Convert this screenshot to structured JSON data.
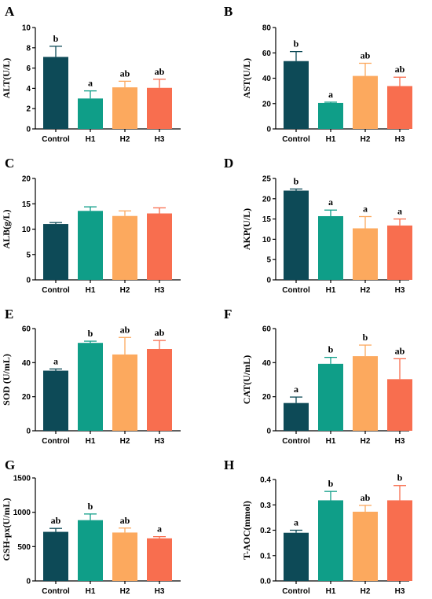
{
  "colors": [
    "#0d4a57",
    "#0f9e88",
    "#fca95e",
    "#f86e4f"
  ],
  "chart_data": [
    {
      "type": "bar",
      "panel": "A",
      "ylabel": "ALT(U/L)",
      "categories": [
        "Control",
        "H1",
        "H2",
        "H3"
      ],
      "values": [
        7.1,
        3.0,
        4.1,
        4.05
      ],
      "errors": [
        1.05,
        0.75,
        0.6,
        0.85
      ],
      "sig": [
        "b",
        "a",
        "ab",
        "ab"
      ],
      "ylim": [
        0,
        10
      ],
      "ticks": [
        "0",
        "2",
        "4",
        "6",
        "8",
        "10"
      ]
    },
    {
      "type": "bar",
      "panel": "B",
      "ylabel": "AST(U/L)",
      "categories": [
        "Control",
        "H1",
        "H2",
        "H3"
      ],
      "values": [
        53.5,
        20.5,
        41.8,
        33.8
      ],
      "errors": [
        7.5,
        0.6,
        10.0,
        7.0
      ],
      "sig": [
        "b",
        "a",
        "ab",
        "ab"
      ],
      "ylim": [
        0,
        80
      ],
      "ticks": [
        "0",
        "20",
        "40",
        "60",
        "80"
      ]
    },
    {
      "type": "bar",
      "panel": "C",
      "ylabel": "ALB(g/L)",
      "categories": [
        "Control",
        "H1",
        "H2",
        "H3"
      ],
      "values": [
        11.0,
        13.6,
        12.6,
        13.1
      ],
      "errors": [
        0.3,
        0.8,
        1.0,
        1.1
      ],
      "sig": [
        "",
        "",
        "",
        ""
      ],
      "ylim": [
        0,
        20
      ],
      "ticks": [
        "0",
        "5",
        "10",
        "15",
        "20"
      ]
    },
    {
      "type": "bar",
      "panel": "D",
      "ylabel": "AKP(U/L)",
      "categories": [
        "Control",
        "H1",
        "H2",
        "H3"
      ],
      "values": [
        22.0,
        15.7,
        12.7,
        13.4
      ],
      "errors": [
        0.4,
        1.5,
        2.9,
        1.6
      ],
      "sig": [
        "b",
        "a",
        "a",
        "a"
      ],
      "ylim": [
        0,
        25
      ],
      "ticks": [
        "0",
        "5",
        "10",
        "15",
        "20",
        "25"
      ]
    },
    {
      "type": "bar",
      "panel": "E",
      "ylabel": "SOD (U/mL)",
      "categories": [
        "Control",
        "H1",
        "H2",
        "H3"
      ],
      "values": [
        35.3,
        51.6,
        44.8,
        48.0
      ],
      "errors": [
        1.0,
        1.0,
        10.0,
        5.0
      ],
      "sig": [
        "a",
        "b",
        "ab",
        "ab"
      ],
      "ylim": [
        0,
        60
      ],
      "ticks": [
        "0",
        "20",
        "40",
        "60"
      ]
    },
    {
      "type": "bar",
      "panel": "F",
      "ylabel": "CAT(U/mL)",
      "categories": [
        "Control",
        "H1",
        "H2",
        "H3"
      ],
      "values": [
        16.3,
        39.3,
        43.8,
        30.3
      ],
      "errors": [
        3.5,
        3.8,
        6.5,
        12.0
      ],
      "sig": [
        "a",
        "b",
        "b",
        "ab"
      ],
      "ylim": [
        0,
        60
      ],
      "ticks": [
        "0",
        "20",
        "40",
        "60"
      ]
    },
    {
      "type": "bar",
      "panel": "G",
      "ylabel": "GSH-px(U/mL)",
      "categories": [
        "Control",
        "H1",
        "H2",
        "H3"
      ],
      "values": [
        715,
        885,
        705,
        620
      ],
      "errors": [
        50,
        90,
        65,
        25
      ],
      "sig": [
        "ab",
        "b",
        "ab",
        "a"
      ],
      "ylim": [
        0,
        1500
      ],
      "ticks": [
        "0",
        "500",
        "1000",
        "1500"
      ]
    },
    {
      "type": "bar",
      "panel": "H",
      "ylabel": "T-AOC(mmol)",
      "categories": [
        "Control",
        "H1",
        "H2",
        "H3"
      ],
      "values": [
        0.19,
        0.318,
        0.273,
        0.318
      ],
      "errors": [
        0.01,
        0.035,
        0.025,
        0.058
      ],
      "sig": [
        "a",
        "b",
        "ab",
        "b"
      ],
      "ylim": [
        0,
        0.4
      ],
      "ticks": [
        "0.0",
        "0.1",
        "0.2",
        "0.3",
        "0.4"
      ]
    }
  ]
}
